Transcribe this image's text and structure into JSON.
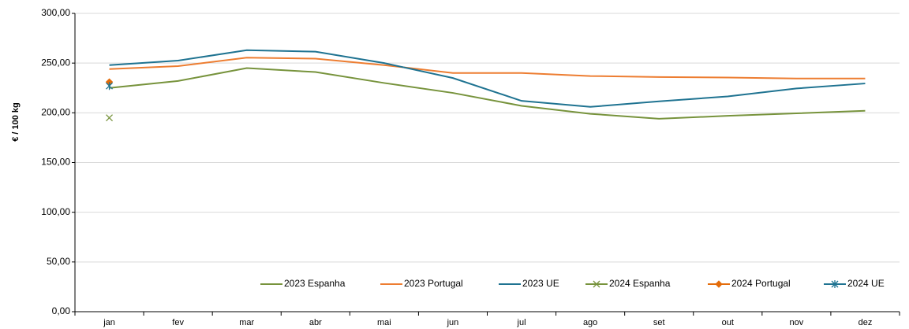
{
  "chart_data": {
    "type": "line",
    "y_label": "€ / 100 kg",
    "categories": [
      "jan",
      "fev",
      "mar",
      "abr",
      "mai",
      "jun",
      "jul",
      "ago",
      "set",
      "out",
      "nov",
      "dez"
    ],
    "series": [
      {
        "name": "2023 Espanha",
        "color": "#77933c",
        "values": [
          225,
          232,
          245,
          241,
          230,
          220,
          207,
          199,
          194,
          197,
          199.5,
          202
        ]
      },
      {
        "name": "2023 Portugal",
        "color": "#ed7d31",
        "values": [
          244,
          247,
          255.5,
          254.5,
          248,
          240,
          240,
          237,
          236,
          235.5,
          234.5,
          234.5
        ]
      },
      {
        "name": "2023 UE",
        "color": "#1f7391",
        "values": [
          248,
          252.5,
          263,
          261.5,
          250,
          235,
          212,
          206,
          211.5,
          216.5,
          224.5,
          229.5
        ]
      },
      {
        "name": "2024 Espanha",
        "color": "#77933c",
        "marker": "x",
        "values": [
          195,
          null,
          null,
          null,
          null,
          null,
          null,
          null,
          null,
          null,
          null,
          null
        ]
      },
      {
        "name": "2024 Portugal",
        "color": "#e46c0a",
        "marker": "diamond",
        "values": [
          231,
          null,
          null,
          null,
          null,
          null,
          null,
          null,
          null,
          null,
          null,
          null
        ]
      },
      {
        "name": "2024 UE",
        "color": "#1f7391",
        "marker": "star",
        "values": [
          227,
          null,
          null,
          null,
          null,
          null,
          null,
          null,
          null,
          null,
          null,
          null
        ]
      }
    ],
    "ylim": [
      0,
      300
    ],
    "yticks": [
      {
        "value": 0,
        "label": "0,00"
      },
      {
        "value": 50,
        "label": "50,00"
      },
      {
        "value": 100,
        "label": "100,00"
      },
      {
        "value": 150,
        "label": "150,00"
      },
      {
        "value": 200,
        "label": "200,00"
      },
      {
        "value": 250,
        "label": "250,00"
      },
      {
        "value": 300,
        "label": "300,00"
      }
    ],
    "grid": true,
    "legend": "bottom"
  }
}
